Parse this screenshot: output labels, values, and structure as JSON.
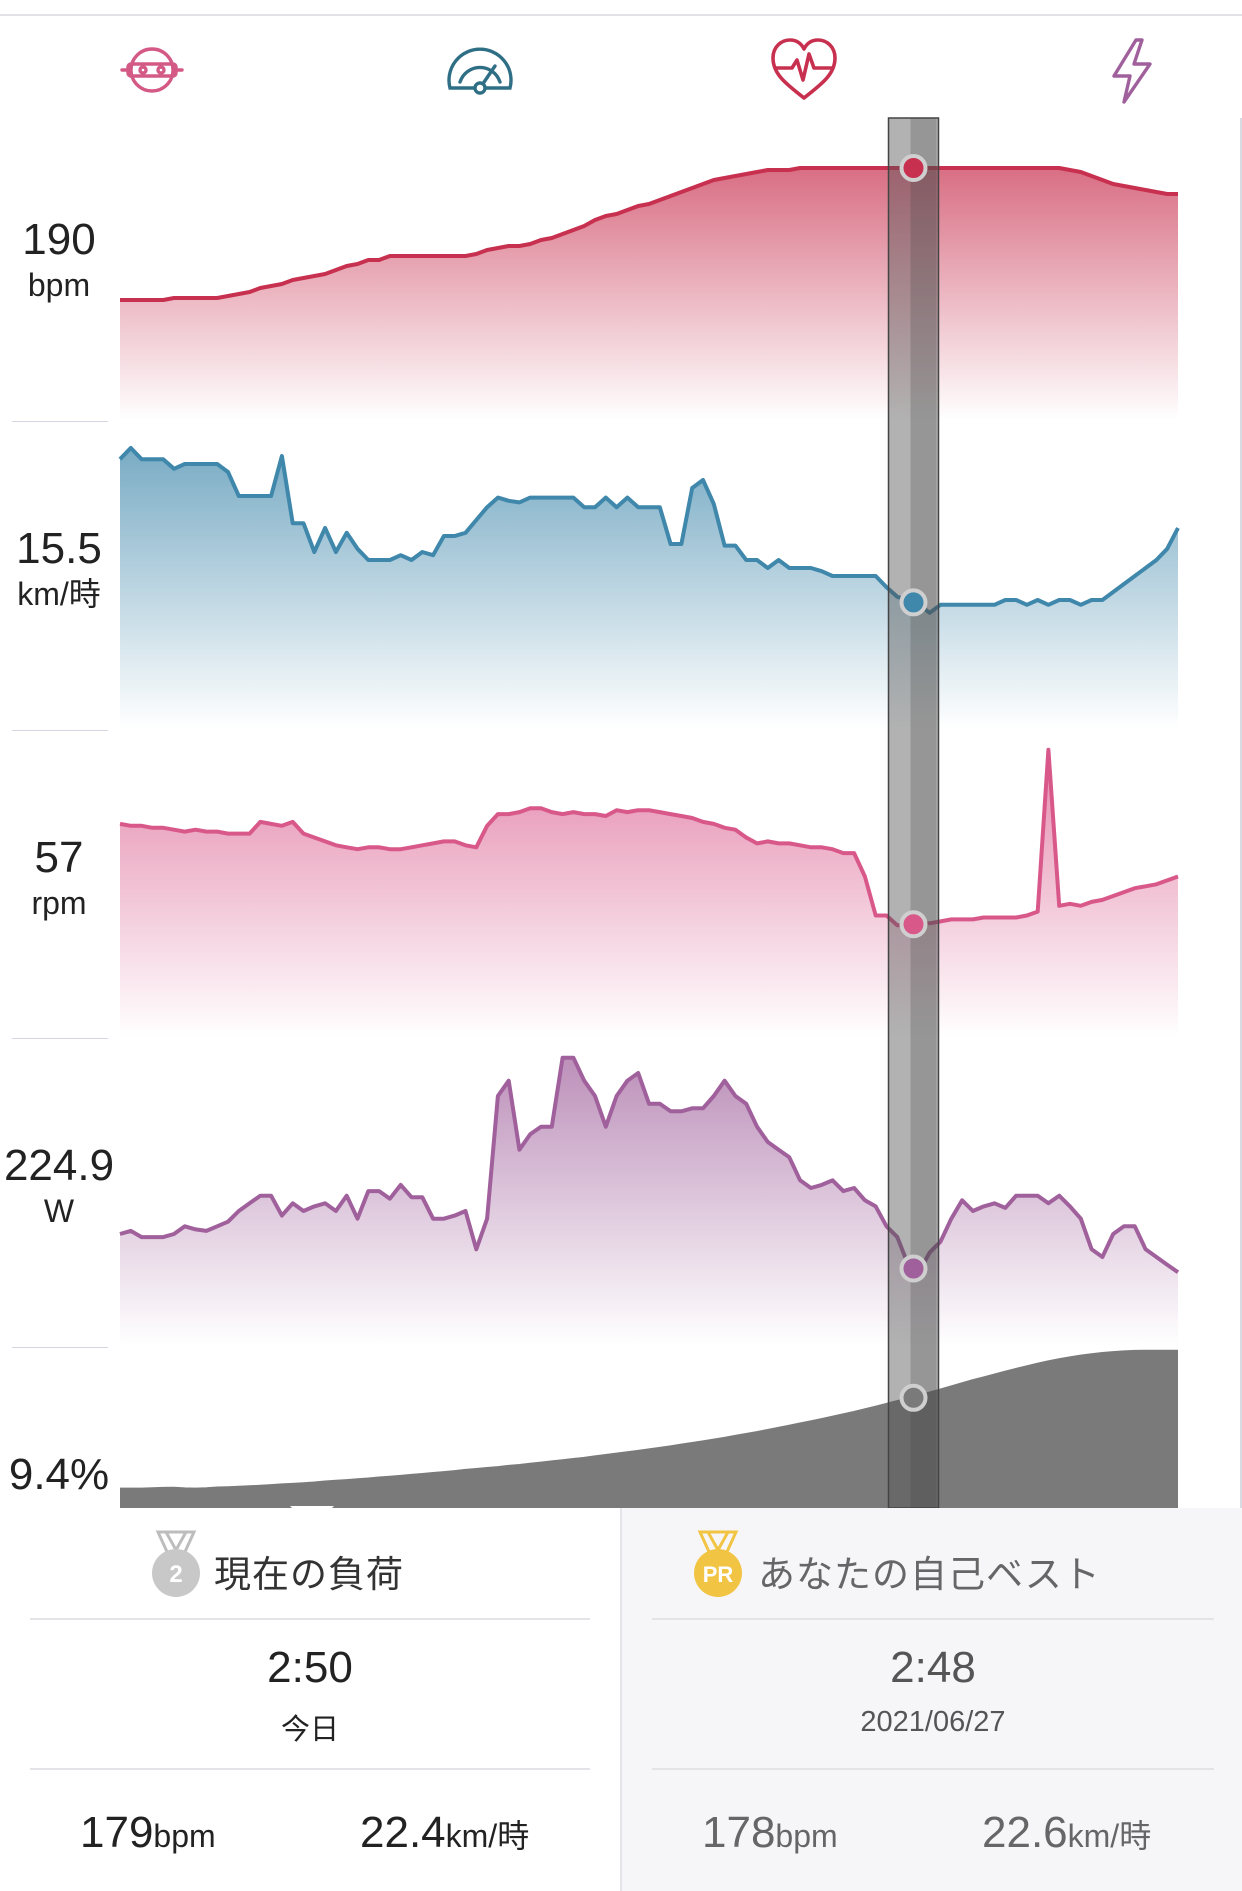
{
  "colors": {
    "heart_rate": "#c8304f",
    "speed": "#3f87ab",
    "cadence": "#d9588a",
    "power": "#a0609c",
    "grade": "#7a7a7a",
    "pr_badge": "#f2c443",
    "rank_badge": "#c8c8c8"
  },
  "icons": [
    {
      "name": "cadence-icon",
      "color": "#d45a86"
    },
    {
      "name": "speedometer-icon",
      "color": "#2f6f86"
    },
    {
      "name": "heart-rate-icon",
      "color": "#c8304f"
    },
    {
      "name": "power-bolt-icon",
      "color": "#a0609c"
    }
  ],
  "lanes": [
    {
      "key": "hr",
      "value": "190",
      "unit": "bpm"
    },
    {
      "key": "speed",
      "value": "15.5",
      "unit": "km/時"
    },
    {
      "key": "cadence",
      "value": "57",
      "unit": "rpm"
    },
    {
      "key": "power",
      "value": "224.9",
      "unit": "W"
    },
    {
      "key": "grade",
      "value": "9.4%",
      "unit": ""
    }
  ],
  "chart_data": {
    "type": "area",
    "cursor_index": 0.75,
    "series": [
      {
        "key": "hr",
        "values": [
          20,
          20,
          20,
          20,
          20,
          21,
          21,
          21,
          21,
          21,
          22,
          23,
          24,
          26,
          27,
          28,
          30,
          31,
          32,
          33,
          35,
          37,
          38,
          40,
          40,
          42,
          42,
          42,
          42,
          42,
          42,
          42,
          42,
          43,
          45,
          46,
          47,
          47,
          48,
          50,
          51,
          53,
          55,
          57,
          60,
          62,
          63,
          65,
          67,
          68,
          70,
          72,
          74,
          76,
          78,
          80,
          81,
          82,
          83,
          84,
          85,
          85,
          85,
          86,
          86,
          86,
          86,
          86,
          86,
          86,
          86,
          86,
          86,
          86,
          86,
          86,
          86,
          86,
          86,
          86,
          86,
          86,
          86,
          86,
          86,
          86,
          86,
          86,
          85,
          84,
          82,
          80,
          78,
          77,
          76,
          75,
          74,
          73,
          73
        ]
      },
      {
        "key": "speed",
        "values": [
          88,
          95,
          88,
          88,
          88,
          82,
          85,
          85,
          85,
          85,
          80,
          65,
          65,
          65,
          65,
          90,
          48,
          48,
          30,
          45,
          30,
          42,
          32,
          25,
          25,
          25,
          28,
          25,
          30,
          28,
          40,
          40,
          42,
          50,
          58,
          64,
          62,
          61,
          64,
          64,
          64,
          64,
          64,
          58,
          58,
          64,
          58,
          64,
          58,
          58,
          58,
          35,
          35,
          70,
          75,
          60,
          34,
          34,
          25,
          25,
          20,
          25,
          20,
          20,
          20,
          18,
          15,
          15,
          15,
          15,
          15,
          8,
          2,
          0,
          -3,
          -8,
          -3,
          -3,
          -3,
          -3,
          -3,
          -3,
          0,
          0,
          -3,
          0,
          -3,
          0,
          0,
          -3,
          0,
          0,
          5,
          10,
          15,
          20,
          25,
          32,
          45
        ]
      },
      {
        "key": "cadence",
        "values": [
          57,
          56,
          56,
          55,
          55,
          54,
          53,
          54,
          53,
          53,
          52,
          52,
          52,
          58,
          57,
          56,
          58,
          52,
          50,
          48,
          46,
          45,
          44,
          45,
          45,
          44,
          44,
          45,
          46,
          47,
          48,
          48,
          46,
          45,
          56,
          62,
          62,
          63,
          65,
          65,
          63,
          62,
          63,
          62,
          62,
          61,
          64,
          63,
          64,
          64,
          63,
          62,
          61,
          60,
          58,
          57,
          55,
          54,
          50,
          47,
          48,
          47,
          47,
          46,
          45,
          45,
          44,
          42,
          42,
          30,
          10,
          10,
          5,
          5,
          6,
          6,
          7,
          8,
          8,
          8,
          9,
          9,
          9,
          9,
          10,
          12,
          95,
          15,
          16,
          15,
          17,
          18,
          20,
          22,
          24,
          25,
          26,
          28,
          30
        ]
      },
      {
        "key": "power",
        "values": [
          30,
          32,
          28,
          28,
          28,
          30,
          35,
          33,
          32,
          35,
          38,
          45,
          50,
          55,
          55,
          42,
          50,
          45,
          48,
          50,
          45,
          55,
          40,
          58,
          58,
          53,
          62,
          54,
          54,
          40,
          40,
          42,
          45,
          20,
          40,
          120,
          130,
          85,
          95,
          100,
          100,
          145,
          145,
          130,
          120,
          100,
          120,
          130,
          135,
          115,
          115,
          110,
          110,
          112,
          112,
          120,
          130,
          120,
          115,
          100,
          90,
          85,
          80,
          65,
          60,
          62,
          65,
          58,
          60,
          52,
          48,
          35,
          28,
          10,
          5,
          18,
          25,
          40,
          52,
          45,
          48,
          50,
          47,
          55,
          55,
          55,
          50,
          55,
          48,
          40,
          20,
          15,
          30,
          35,
          35,
          20,
          15,
          10,
          5
        ]
      },
      {
        "key": "grade",
        "values": [
          1.0,
          1.0,
          1.0,
          1.2,
          1.3,
          1.4,
          1.1,
          1.0,
          1.2,
          1.5,
          1.6,
          1.8,
          2.0,
          2.2,
          2.5,
          2.8,
          3.0,
          3.3,
          3.6,
          4.0,
          4.3,
          4.6,
          5.0,
          5.3,
          5.7,
          6.0,
          6.4,
          6.8,
          7.2,
          7.6,
          8.0,
          8.4,
          8.9,
          9.3,
          9.7,
          10.1,
          10.6,
          11.0,
          11.5,
          12.0,
          12.5,
          13.0,
          13.5,
          14.0,
          14.6,
          15.2,
          15.8,
          16.4,
          17.0,
          17.6,
          18.2,
          18.9,
          19.6,
          20.3,
          21.0,
          21.7,
          22.5,
          23.3,
          24.1,
          24.9,
          25.8,
          26.7,
          27.6,
          28.5,
          29.4,
          30.4,
          31.4,
          32.4,
          33.4,
          34.5,
          35.6,
          36.8,
          38.0,
          39.2,
          40.4,
          41.6,
          42.9,
          44.2,
          45.5,
          46.8,
          48.0,
          49.2,
          50.4,
          51.6,
          52.7,
          53.8,
          54.8,
          55.7,
          56.5,
          57.2,
          57.8,
          58.3,
          58.7,
          59.0,
          59.2,
          59.3,
          59.3,
          59.3,
          59.3
        ]
      }
    ]
  },
  "current_load": {
    "title": "現在の負荷",
    "badge": "2",
    "time": "2:50",
    "date": "今日",
    "hr_value": "179",
    "hr_unit": "bpm",
    "speed_value": "22.4",
    "speed_unit": "km/時"
  },
  "personal_best": {
    "title": "あなたの自己ベスト",
    "badge": "PR",
    "time": "2:48",
    "date": "2021/06/27",
    "hr_value": "178",
    "hr_unit": "bpm",
    "speed_value": "22.6",
    "speed_unit": "km/時"
  }
}
